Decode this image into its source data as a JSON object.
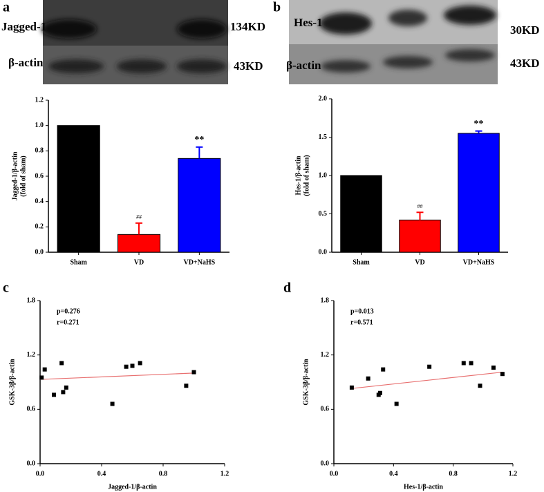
{
  "panels": [
    "a",
    "b",
    "c",
    "d"
  ],
  "blots": [
    {
      "bands": [
        {
          "label": "Jagged-1",
          "size": "134KD"
        },
        {
          "label": "β-actin",
          "size": "43KD"
        }
      ]
    },
    {
      "bands": [
        {
          "label": "Hes-1",
          "size": "30KD"
        },
        {
          "label": "β-actin",
          "size": "43KD"
        }
      ]
    }
  ],
  "chart_data": [
    {
      "type": "bar",
      "y_label": [
        "Jagged-1/β-actin",
        "(fold of sham)"
      ],
      "categories": [
        "Sham",
        "VD",
        "VD+NaHS"
      ],
      "values": [
        1.0,
        0.14,
        0.74
      ],
      "errors": [
        0,
        0.09,
        0.09
      ],
      "colors": [
        "#000000",
        "#ff0000",
        "#0000ff"
      ],
      "annotations": [
        {
          "category": "VD",
          "text": "##"
        },
        {
          "category": "VD+NaHS",
          "text": "**"
        }
      ],
      "ylim": [
        0,
        1.2
      ],
      "yticks": [
        {
          "value": 0,
          "label": "0.0"
        },
        0.2,
        0.4,
        0.6,
        0.8,
        {
          "value": 1,
          "label": "1.0"
        },
        1.2
      ]
    },
    {
      "type": "bar",
      "y_label": [
        "Hes-1/β-actin",
        "(fold of sham)"
      ],
      "categories": [
        "Sham",
        "VD",
        "VD+NaHS"
      ],
      "values": [
        1.0,
        0.42,
        1.55
      ],
      "errors": [
        0,
        0.1,
        0.03
      ],
      "colors": [
        "#000000",
        "#ff0000",
        "#0000ff"
      ],
      "annotations": [
        {
          "category": "VD",
          "text": "##"
        },
        {
          "category": "VD+NaHS",
          "text": "**"
        }
      ],
      "ylim": [
        0,
        2.0
      ],
      "yticks": [
        {
          "value": 0,
          "label": "0.0"
        },
        0.5,
        {
          "value": 1,
          "label": "1.0"
        },
        1.5,
        {
          "value": 2,
          "label": "2.0"
        }
      ]
    },
    {
      "type": "scatter",
      "x_label": "Jagged-1/β-actin",
      "y_label": "GSK-3β/β-actin",
      "annotations": [
        "p=0.276",
        "r=0.271"
      ],
      "x": [
        0.01,
        0.03,
        0.09,
        0.14,
        0.15,
        0.17,
        0.47,
        0.56,
        0.6,
        0.65,
        0.95,
        1.0
      ],
      "values": [
        0.95,
        1.04,
        0.76,
        1.11,
        0.79,
        0.84,
        0.66,
        1.07,
        1.08,
        1.11,
        0.86,
        1.01
      ],
      "color": "#000000",
      "trendline": {
        "x": [
          0,
          1.0
        ],
        "y": [
          0.93,
          1.0
        ],
        "color": "#e87070"
      },
      "xlim": [
        0,
        1.2
      ],
      "xticks": [
        {
          "value": 0,
          "label": "0.0"
        },
        0.4,
        0.8,
        1.2
      ],
      "ylim": [
        0,
        1.8
      ],
      "yticks": [
        {
          "value": 0,
          "label": "0.0"
        },
        0.6,
        1.2,
        1.8
      ]
    },
    {
      "type": "scatter",
      "x_label": "Hes-1/β-actin",
      "y_label": "GSK-3β/β-actin",
      "annotations": [
        "p=0.013",
        "r=0.571"
      ],
      "x": [
        0.12,
        0.23,
        0.3,
        0.31,
        0.33,
        0.42,
        0.64,
        0.87,
        0.92,
        0.98,
        1.07,
        1.13
      ],
      "values": [
        0.84,
        0.94,
        0.76,
        0.78,
        1.04,
        0.66,
        1.07,
        1.11,
        1.11,
        0.86,
        1.06,
        0.99
      ],
      "color": "#000000",
      "trendline": {
        "x": [
          0.12,
          1.13
        ],
        "y": [
          0.83,
          1.01
        ],
        "color": "#e87070"
      },
      "xlim": [
        0,
        1.2
      ],
      "xticks": [
        {
          "value": 0,
          "label": "0.0"
        },
        0.4,
        0.8,
        1.2
      ],
      "ylim": [
        0,
        1.8
      ],
      "yticks": [
        {
          "value": 0,
          "label": "0.0"
        },
        0.6,
        1.2,
        1.8
      ]
    }
  ]
}
